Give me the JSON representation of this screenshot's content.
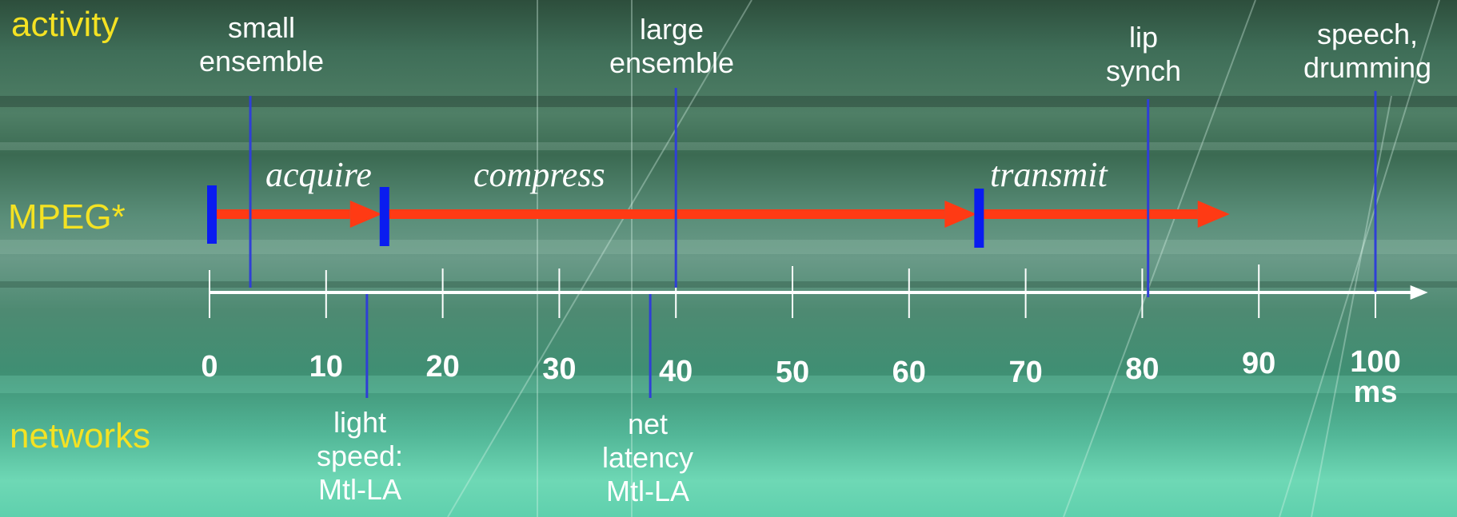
{
  "rows": {
    "activity": "activity",
    "mpeg": "MPEG*",
    "networks": "networks"
  },
  "activities": [
    {
      "label": "small\nensemble",
      "ms": 3.5
    },
    {
      "label": "large\nensemble",
      "ms": 40
    },
    {
      "label": "lip\nsynch",
      "ms": 80.5
    },
    {
      "label": "speech,\ndrumming",
      "ms": 100
    }
  ],
  "networks": [
    {
      "label": "light\nspeed:\nMtl-LA",
      "ms": 13.5
    },
    {
      "label": "net\nlatency\nMtl-LA",
      "ms": 37.8
    }
  ],
  "phases": [
    {
      "label": "acquire",
      "start_ms": 0,
      "end_ms": 14.8
    },
    {
      "label": "compress",
      "start_ms": 14.8,
      "end_ms": 65.8
    },
    {
      "label": "transmit",
      "start_ms": 65.8,
      "end_ms": 87.5
    }
  ],
  "axis": {
    "ticks": [
      0,
      10,
      20,
      30,
      40,
      50,
      60,
      70,
      80,
      90,
      100
    ],
    "tick_labels": [
      "0",
      "10",
      "20",
      "30",
      "40",
      "50",
      "60",
      "70",
      "80",
      "90",
      "100\nms"
    ],
    "range": [
      0,
      104.5
    ]
  },
  "colors": {
    "label": "#f4e223",
    "arrow": "#ff3a14",
    "marker": "#0a1cf0",
    "activity_line": "#2f3fd6",
    "axis": "#ffffff"
  }
}
